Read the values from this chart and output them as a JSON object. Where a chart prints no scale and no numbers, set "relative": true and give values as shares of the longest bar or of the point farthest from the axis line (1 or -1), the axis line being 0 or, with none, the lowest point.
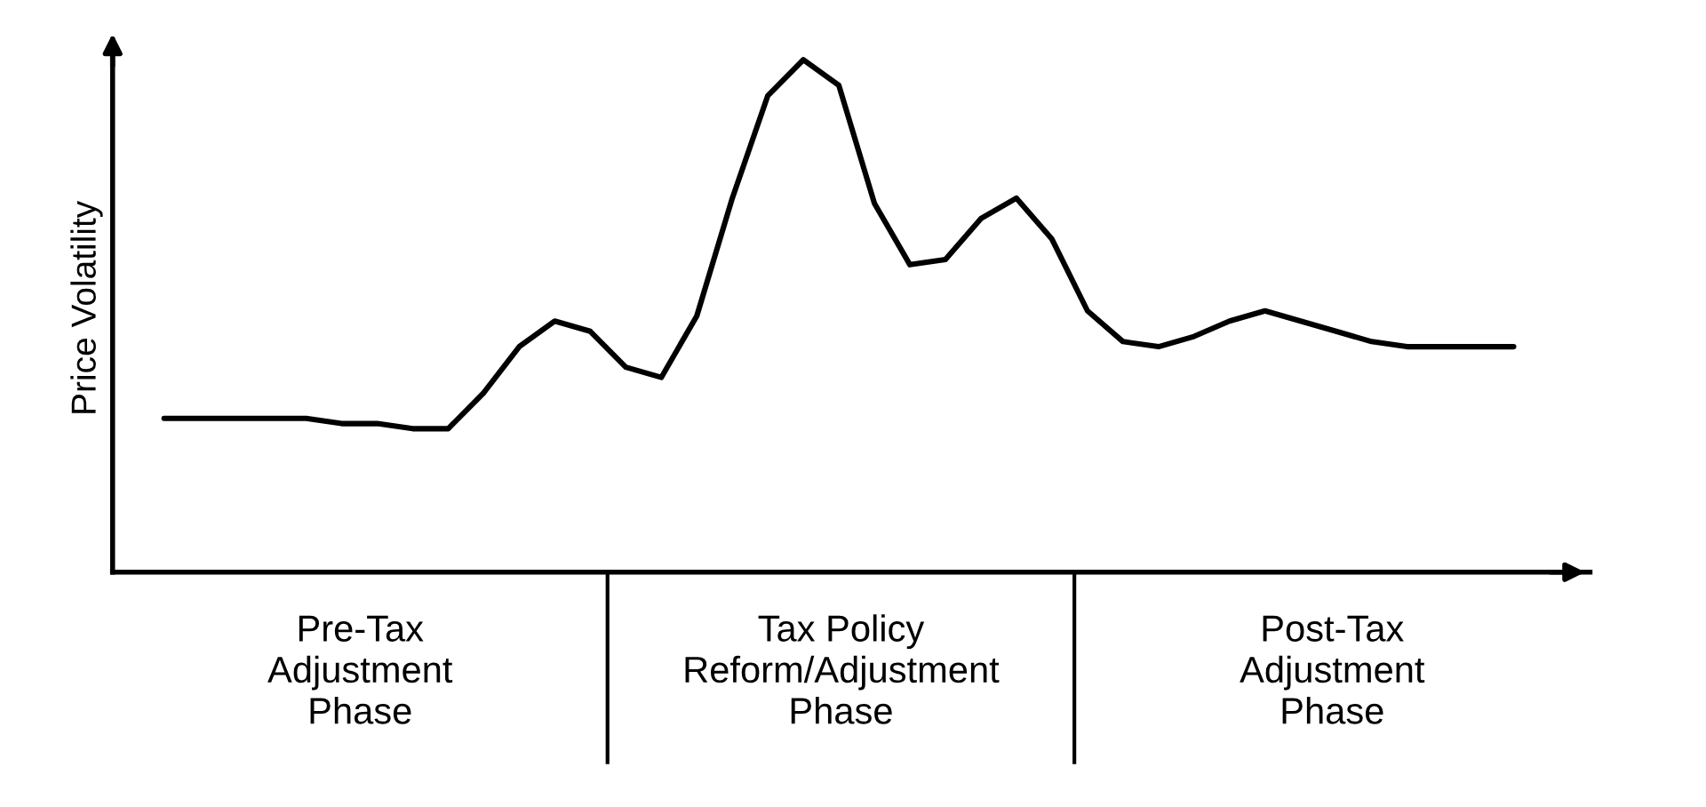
{
  "chart_data": {
    "type": "line",
    "relative": true,
    "ylabel": "Price Volatility",
    "categories": [
      null,
      null,
      null,
      null,
      null,
      null,
      null,
      null,
      null,
      null,
      null,
      null,
      null,
      null,
      null,
      null,
      null,
      null,
      null,
      null,
      null,
      null,
      null,
      null,
      null,
      null,
      null,
      null,
      null,
      null,
      null,
      null,
      null,
      null,
      null,
      null,
      null,
      null,
      null
    ],
    "series": [
      {
        "color": "#000000",
        "values": [
          0.3,
          0.3,
          0.3,
          0.3,
          0.3,
          0.29,
          0.29,
          0.28,
          0.28,
          0.35,
          0.44,
          0.49,
          0.47,
          0.4,
          0.38,
          0.5,
          0.73,
          0.93,
          1,
          0.95,
          0.72,
          0.6,
          0.61,
          0.69,
          0.73,
          0.65,
          0.51,
          0.45,
          0.44,
          0.46,
          0.49,
          0.51,
          0.49,
          0.47,
          0.45,
          0.44,
          0.44,
          0.44,
          0.44
        ]
      }
    ],
    "annotations": [
      "Pre-Tax\nAdjustment\nPhase",
      "Tax Policy\nReform/Adjustment\nPhase",
      "Post-Tax\nAdjustment\nPhase"
    ],
    "grid": false,
    "legend": false,
    "marker": "none",
    "line_style": "solid"
  }
}
